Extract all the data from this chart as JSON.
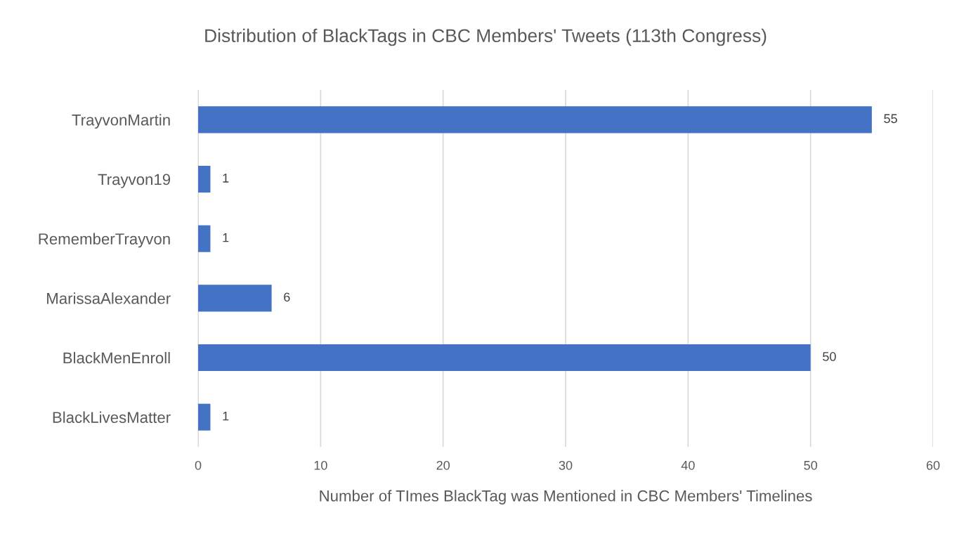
{
  "chart_data": {
    "type": "bar",
    "orientation": "horizontal",
    "title": "Distribution of BlackTags in CBC Members' Tweets (113th Congress)",
    "xlabel": "Number of TImes BlackTag was Mentioned in CBC Members' Timelines",
    "categories": [
      "TrayvonMartin",
      "Trayvon19",
      "RememberTrayvon",
      "MarissaAlexander",
      "BlackMenEnroll",
      "BlackLivesMatter"
    ],
    "values": [
      55,
      1,
      1,
      6,
      50,
      1
    ],
    "color": "#4472c4",
    "xlim": [
      0,
      60
    ],
    "xticks": [
      0,
      10,
      20,
      30,
      40,
      50,
      60
    ],
    "grid": "x",
    "data_labels": true,
    "legend": false
  }
}
